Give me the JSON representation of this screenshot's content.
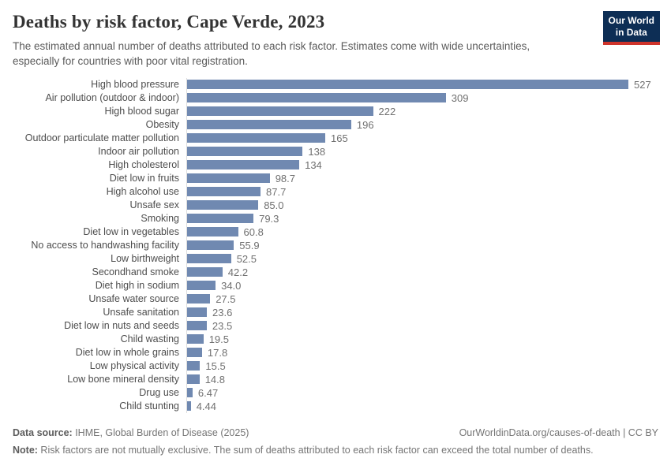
{
  "header": {
    "title": "Deaths by risk factor, Cape Verde, 2023",
    "subtitle_lines": {
      "0": "The estimated annual number of deaths attributed to each risk factor. Estimates come with wide uncertainties,",
      "1": "especially for countries with poor vital registration."
    },
    "logo": {
      "line1": "Our World",
      "line2": "in Data"
    }
  },
  "chart_data": {
    "type": "bar",
    "orientation": "horizontal",
    "title": "Deaths by risk factor, Cape Verde, 2023",
    "xlabel": "",
    "ylabel": "",
    "xlim": [
      0,
      527
    ],
    "grid": false,
    "legend": false,
    "bar_color": "#7089b1",
    "axis_line_color": "#dcdcdc",
    "categories": [
      "High blood pressure",
      "Air pollution (outdoor & indoor)",
      "High blood sugar",
      "Obesity",
      "Outdoor particulate matter pollution",
      "Indoor air pollution",
      "High cholesterol",
      "Diet low in fruits",
      "High alcohol use",
      "Unsafe sex",
      "Smoking",
      "Diet low in vegetables",
      "No access to handwashing facility",
      "Low birthweight",
      "Secondhand smoke",
      "Diet high in sodium",
      "Unsafe water source",
      "Unsafe sanitation",
      "Diet low in nuts and seeds",
      "Child wasting",
      "Diet low in whole grains",
      "Low physical activity",
      "Low bone mineral density",
      "Drug use",
      "Child stunting"
    ],
    "values": [
      527,
      309,
      222,
      196,
      165,
      138,
      134,
      98.7,
      87.7,
      85.0,
      79.3,
      60.8,
      55.9,
      52.5,
      42.2,
      34.0,
      27.5,
      23.6,
      23.5,
      19.5,
      17.8,
      15.5,
      14.8,
      6.47,
      4.44
    ],
    "value_labels": [
      "527",
      "309",
      "222",
      "196",
      "165",
      "138",
      "134",
      "98.7",
      "87.7",
      "85.0",
      "79.3",
      "60.8",
      "55.9",
      "52.5",
      "42.2",
      "34.0",
      "27.5",
      "23.6",
      "23.5",
      "19.5",
      "17.8",
      "15.5",
      "14.8",
      "6.47",
      "4.44"
    ]
  },
  "footer": {
    "datasource_label": "Data source:",
    "datasource_text": " IHME, Global Burden of Disease (2025)",
    "link_text": "OurWorldinData.org/causes-of-death | CC BY",
    "note_label": "Note:",
    "note_text": " Risk factors are not mutually exclusive. The sum of deaths attributed to each risk factor can exceed the total number of deaths."
  }
}
